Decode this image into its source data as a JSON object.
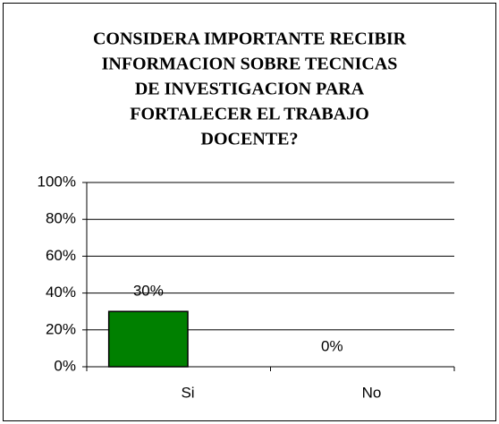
{
  "chart_data": {
    "type": "bar",
    "title": [
      "CONSIDERA IMPORTANTE RECIBIR",
      "INFORMACION SOBRE TECNICAS",
      "DE INVESTIGACION PARA",
      "FORTALECER EL TRABAJO",
      "DOCENTE?"
    ],
    "categories": [
      "Si",
      "No"
    ],
    "values": [
      30,
      0
    ],
    "value_labels": [
      "30%",
      "0%"
    ],
    "color": "#008000",
    "ylim": [
      0,
      100
    ],
    "yticks": [
      {
        "value": 0,
        "label": "0%"
      },
      {
        "value": 20,
        "label": "20%"
      },
      {
        "value": 40,
        "label": "40%"
      },
      {
        "value": 60,
        "label": "60%"
      },
      {
        "value": 80,
        "label": "80%"
      },
      {
        "value": 100,
        "label": "100%"
      }
    ],
    "grid": true
  }
}
